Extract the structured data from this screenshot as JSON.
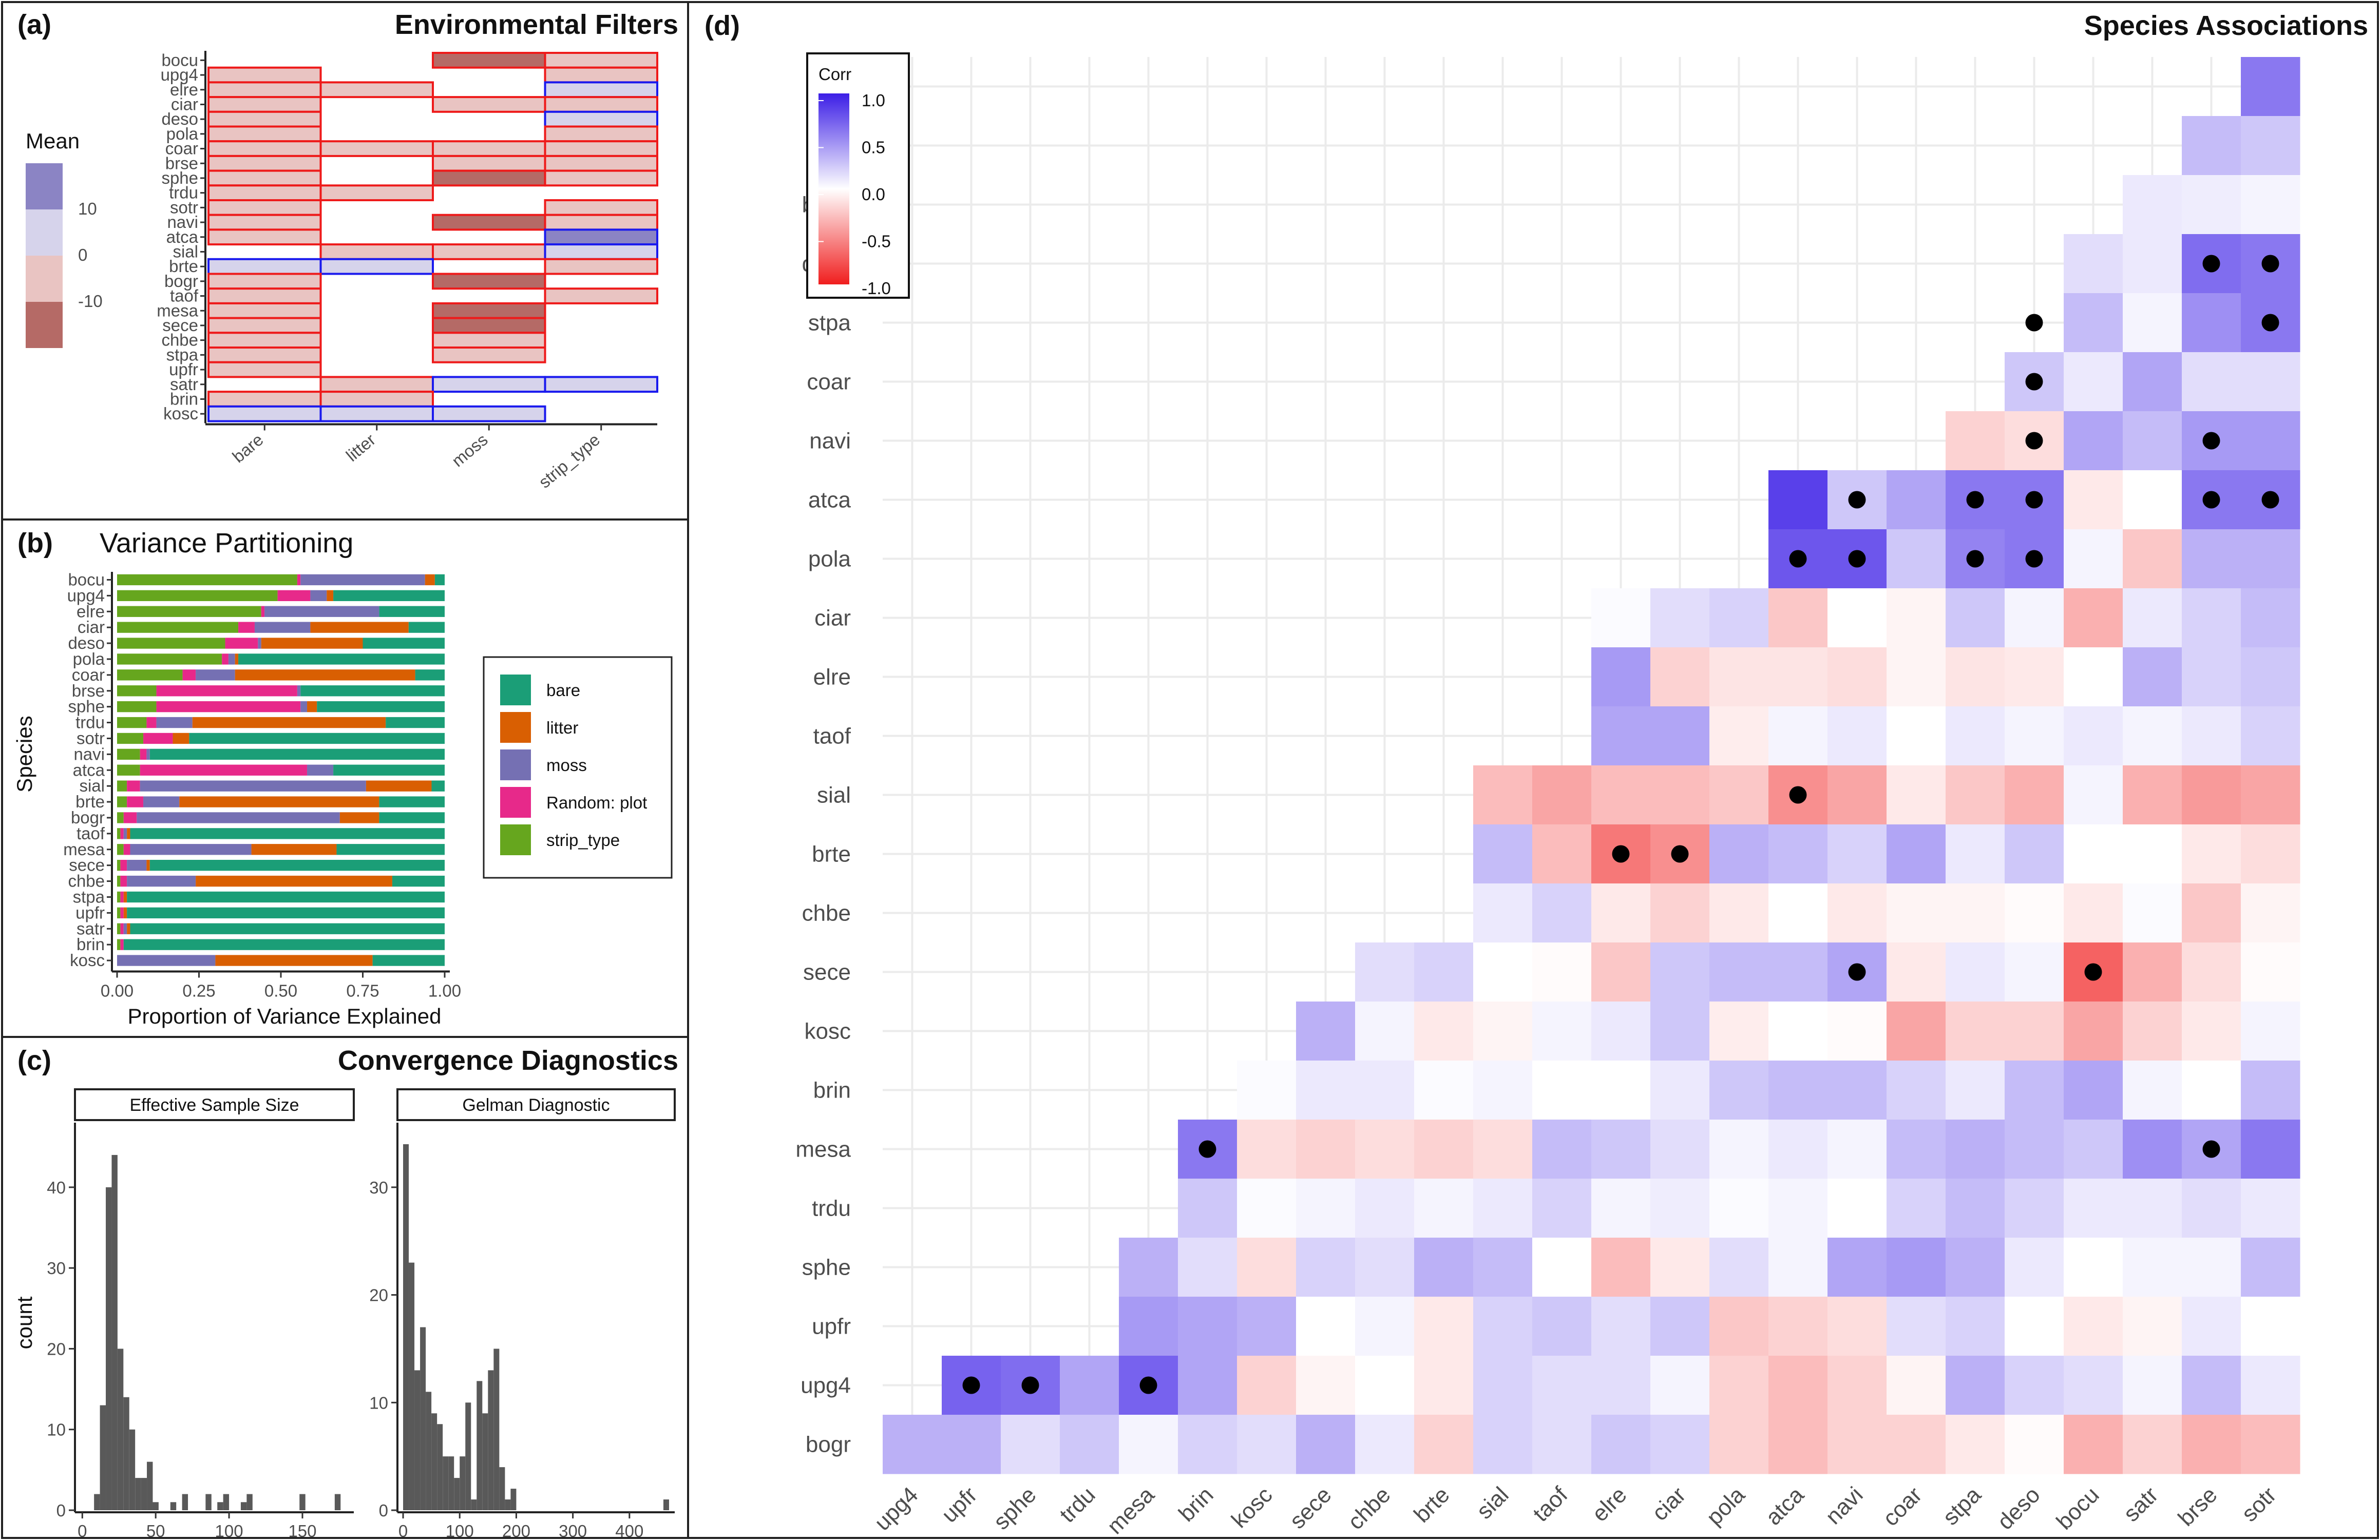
{
  "colors": {
    "bare": "#1b9e77",
    "litter": "#d95f02",
    "moss": "#7570b3",
    "random": "#e7298a",
    "strip": "#66a61e",
    "pos_strong": "#8b84c4",
    "pos_weak": "#d6d3eb",
    "neg_weak": "#e9c4c2",
    "neg_strong": "#b56a66",
    "hist": "#595959"
  },
  "panel_a": {
    "tag": "(a)",
    "title": "Environmental Filters",
    "legend_title": "Mean",
    "legend_labels": [
      "10",
      "0",
      "-10"
    ],
    "chart_data": {
      "type": "heatmap",
      "species": [
        "bocu",
        "upg4",
        "elre",
        "ciar",
        "deso",
        "pola",
        "coar",
        "brse",
        "sphe",
        "trdu",
        "sotr",
        "navi",
        "atca",
        "sial",
        "brte",
        "bogr",
        "taof",
        "mesa",
        "sece",
        "chbe",
        "stpa",
        "upfr",
        "satr",
        "brin",
        "kosc"
      ],
      "covariates": [
        "bare",
        "litter",
        "moss",
        "strip_type"
      ],
      "sign_matrix": [
        [
          0,
          0,
          -2,
          -1
        ],
        [
          -1,
          0,
          0,
          -1
        ],
        [
          -1,
          -1,
          0,
          1
        ],
        [
          -1,
          0,
          -1,
          -1
        ],
        [
          -1,
          0,
          0,
          1
        ],
        [
          -1,
          0,
          0,
          -1
        ],
        [
          -1,
          -1,
          -1,
          -1
        ],
        [
          -1,
          0,
          -1,
          -1
        ],
        [
          -1,
          0,
          -2,
          -1
        ],
        [
          -1,
          -1,
          0,
          0
        ],
        [
          -1,
          0,
          0,
          -1
        ],
        [
          -1,
          0,
          -2,
          -1
        ],
        [
          -1,
          0,
          0,
          2
        ],
        [
          0,
          -1,
          -1,
          1
        ],
        [
          1,
          1,
          0,
          -1
        ],
        [
          -1,
          0,
          -2,
          0
        ],
        [
          -1,
          0,
          0,
          -1
        ],
        [
          -1,
          0,
          -2,
          0
        ],
        [
          -1,
          0,
          -2,
          0
        ],
        [
          -1,
          0,
          -1,
          0
        ],
        [
          -1,
          0,
          -1,
          0
        ],
        [
          -1,
          0,
          0,
          0
        ],
        [
          0,
          -1,
          1,
          1
        ],
        [
          -1,
          -1,
          0,
          0
        ],
        [
          1,
          1,
          1,
          0
        ]
      ]
    }
  },
  "panel_b": {
    "tag": "(b)",
    "title": "Variance Partitioning",
    "xlabel": "Proportion of Variance Explained",
    "ylabel": "Species",
    "xticks": [
      "0.00",
      "0.25",
      "0.50",
      "0.75",
      "1.00"
    ],
    "legend": [
      "bare",
      "litter",
      "moss",
      "Random: plot",
      "strip_type"
    ],
    "chart_data": {
      "type": "bar",
      "orientation": "horizontal-stacked",
      "categories": [
        "bocu",
        "upg4",
        "elre",
        "ciar",
        "deso",
        "pola",
        "coar",
        "brse",
        "sphe",
        "trdu",
        "sotr",
        "navi",
        "atca",
        "sial",
        "brte",
        "bogr",
        "taof",
        "mesa",
        "sece",
        "chbe",
        "stpa",
        "upfr",
        "satr",
        "brin",
        "kosc"
      ],
      "series": [
        {
          "name": "strip_type",
          "values": [
            0.55,
            0.49,
            0.44,
            0.37,
            0.33,
            0.32,
            0.2,
            0.12,
            0.12,
            0.09,
            0.08,
            0.07,
            0.07,
            0.03,
            0.03,
            0.02,
            0.01,
            0.02,
            0.01,
            0.01,
            0.01,
            0.01,
            0.01,
            0.01,
            0.0
          ]
        },
        {
          "name": "Random: plot",
          "values": [
            0.01,
            0.1,
            0.01,
            0.05,
            0.1,
            0.02,
            0.04,
            0.43,
            0.44,
            0.03,
            0.09,
            0.02,
            0.51,
            0.04,
            0.05,
            0.04,
            0.01,
            0.02,
            0.02,
            0.02,
            0.01,
            0.01,
            0.01,
            0.01,
            0.0
          ]
        },
        {
          "name": "moss",
          "values": [
            0.38,
            0.05,
            0.35,
            0.17,
            0.01,
            0.02,
            0.12,
            0.01,
            0.02,
            0.11,
            0.0,
            0.01,
            0.08,
            0.69,
            0.11,
            0.62,
            0.01,
            0.37,
            0.06,
            0.21,
            0.0,
            0.0,
            0.01,
            0.0,
            0.3
          ]
        },
        {
          "name": "litter",
          "values": [
            0.03,
            0.02,
            0.0,
            0.3,
            0.31,
            0.01,
            0.55,
            0.0,
            0.03,
            0.59,
            0.05,
            0.0,
            0.0,
            0.2,
            0.61,
            0.12,
            0.01,
            0.26,
            0.01,
            0.6,
            0.01,
            0.01,
            0.01,
            0.0,
            0.48
          ]
        },
        {
          "name": "bare",
          "values": [
            0.03,
            0.34,
            0.2,
            0.11,
            0.25,
            0.63,
            0.09,
            0.44,
            0.39,
            0.18,
            0.78,
            0.9,
            0.34,
            0.04,
            0.2,
            0.2,
            0.96,
            0.33,
            0.9,
            0.16,
            0.97,
            0.97,
            0.96,
            0.98,
            0.22
          ]
        }
      ],
      "xlim": [
        0,
        1
      ]
    }
  },
  "panel_c": {
    "tag": "(c)",
    "title": "Convergence Diagnostics",
    "ylabel": "count",
    "chart_data": [
      {
        "type": "bar",
        "title": "Effective Sample Size",
        "bins": [
          8,
          12,
          16,
          20,
          24,
          28,
          32,
          36,
          40,
          44,
          48,
          52,
          56,
          60,
          64,
          68,
          80,
          84,
          88,
          92,
          96,
          100,
          104,
          108,
          112,
          116,
          120,
          124,
          128,
          132,
          136,
          140,
          144,
          148,
          152,
          156,
          160,
          164,
          168,
          172,
          176,
          180
        ],
        "counts": [
          2,
          13,
          40,
          44,
          20,
          14,
          10,
          4,
          4,
          6,
          1,
          0,
          0,
          1,
          0,
          2,
          0,
          2,
          0,
          1,
          2,
          0,
          0,
          1,
          2,
          0,
          0,
          0,
          0,
          0,
          0,
          0,
          0,
          2,
          0,
          0,
          0,
          0,
          0,
          2,
          0,
          0
        ],
        "bin_width": 4,
        "xlim": [
          -5,
          185
        ],
        "ylim": [
          0,
          48
        ],
        "xticks": [
          0,
          50,
          100,
          150
        ],
        "yticks": [
          0,
          10,
          20,
          30,
          40
        ]
      },
      {
        "type": "bar",
        "title": "Gelman Diagnostic",
        "bins": [
          0,
          10,
          20,
          30,
          40,
          50,
          60,
          70,
          80,
          90,
          100,
          110,
          120,
          130,
          140,
          150,
          160,
          170,
          180,
          190,
          200,
          460
        ],
        "counts": [
          34,
          23,
          13,
          17,
          11,
          9,
          8,
          5,
          5,
          3,
          5,
          10,
          1,
          12,
          9,
          13,
          15,
          4,
          1,
          2,
          0,
          1
        ],
        "bin_width": 10,
        "xlim": [
          -10,
          480
        ],
        "ylim": [
          0,
          36
        ],
        "xticks": [
          0,
          100,
          200,
          300,
          400
        ],
        "yticks": [
          0,
          10,
          20,
          30
        ]
      }
    ]
  },
  "panel_d": {
    "tag": "(d)",
    "title": "Species Associations",
    "legend_title": "Corr",
    "legend_labels": [
      "1.0",
      "0.5",
      "0.0",
      "-0.5",
      "-1.0"
    ],
    "chart_data": {
      "type": "heatmap",
      "x_labels": [
        "upg4",
        "upfr",
        "sphe",
        "trdu",
        "mesa",
        "brin",
        "kosc",
        "sece",
        "chbe",
        "brte",
        "sial",
        "taof",
        "elre",
        "ciar",
        "pola",
        "atca",
        "navi",
        "coar",
        "stpa",
        "deso",
        "bocu",
        "satr",
        "brse",
        "sotr"
      ],
      "y_labels": [
        "brse",
        "satr",
        "bocu",
        "deso",
        "stpa",
        "coar",
        "navi",
        "atca",
        "pola",
        "ciar",
        "elre",
        "taof",
        "sial",
        "brte",
        "chbe",
        "sece",
        "kosc",
        "brin",
        "mesa",
        "trdu",
        "sphe",
        "upfr",
        "upg4",
        "bogr"
      ],
      "clim": [
        -1,
        1
      ],
      "values": [
        [
          0.6
        ],
        [
          0.3,
          0.25
        ],
        [
          0.1,
          0.08,
          0.05
        ],
        [
          0.15,
          0.1,
          0.65,
          0.6
        ],
        [
          0.3,
          0.05,
          0.5,
          0.6
        ],
        [
          0.25,
          0.1,
          0.4,
          0.15,
          0.15
        ],
        [
          -0.2,
          -0.15,
          0.4,
          0.3,
          0.45,
          0.45
        ],
        [
          0.85,
          0.25,
          0.4,
          0.6,
          0.6,
          -0.1,
          0.0,
          0.6,
          0.6
        ],
        [
          0.75,
          0.75,
          0.25,
          0.55,
          0.6,
          0.05,
          -0.25,
          0.35,
          0.35
        ],
        [
          0.02,
          0.15,
          0.2,
          -0.25,
          0.0,
          -0.05,
          0.25,
          0.05,
          -0.35,
          0.1,
          0.2,
          0.3
        ],
        [
          0.45,
          -0.2,
          -0.12,
          -0.12,
          -0.15,
          -0.05,
          -0.12,
          -0.1,
          0.0,
          0.35,
          0.2,
          0.25
        ],
        [
          0.4,
          0.4,
          -0.08,
          0.05,
          0.1,
          0.0,
          0.1,
          0.05,
          0.1,
          0.05,
          0.1,
          0.2
        ],
        [
          -0.3,
          -0.4,
          -0.3,
          -0.3,
          -0.25,
          -0.5,
          -0.4,
          -0.1,
          -0.25,
          -0.35,
          0.05,
          -0.35,
          -0.45,
          -0.4
        ],
        [
          0.3,
          -0.3,
          -0.6,
          -0.5,
          0.35,
          0.3,
          0.2,
          0.4,
          0.1,
          0.25,
          0.0,
          0.0,
          -0.1,
          -0.15
        ],
        [
          0.1,
          0.2,
          -0.1,
          -0.2,
          -0.1,
          0.0,
          -0.1,
          -0.05,
          -0.05,
          -0.02,
          -0.1,
          0.02,
          -0.25,
          -0.05
        ],
        [
          0.15,
          0.2,
          0.0,
          -0.02,
          -0.25,
          0.25,
          0.3,
          0.3,
          0.4,
          -0.1,
          0.1,
          0.05,
          -0.7,
          -0.35,
          -0.15,
          -0.02
        ],
        [
          0.35,
          0.05,
          -0.1,
          -0.05,
          0.05,
          0.1,
          0.25,
          -0.08,
          0.0,
          -0.02,
          -0.4,
          -0.2,
          -0.2,
          -0.4,
          -0.2,
          -0.1,
          0.05
        ],
        [
          0.02,
          0.1,
          0.1,
          0.02,
          0.05,
          0.0,
          0.0,
          0.1,
          0.25,
          0.3,
          0.3,
          0.2,
          0.1,
          0.3,
          0.4,
          0.05,
          0.0,
          0.3
        ],
        [
          0.6,
          -0.15,
          -0.2,
          -0.15,
          -0.2,
          -0.15,
          0.3,
          0.25,
          0.15,
          0.05,
          0.1,
          0.05,
          0.3,
          0.35,
          0.3,
          0.25,
          0.5,
          0.4,
          0.6
        ],
        [
          0.25,
          0.02,
          0.05,
          0.1,
          0.05,
          0.1,
          0.2,
          0.05,
          0.08,
          0.02,
          0.05,
          0.0,
          0.2,
          0.3,
          0.2,
          0.1,
          0.1,
          0.15,
          0.1
        ],
        [
          0.35,
          0.15,
          -0.15,
          0.2,
          0.15,
          0.35,
          0.3,
          0.0,
          -0.3,
          -0.1,
          0.15,
          0.05,
          0.4,
          0.45,
          0.35,
          0.1,
          0.0,
          0.05,
          0.05,
          0.3
        ],
        [
          0.45,
          0.4,
          0.35,
          0.0,
          0.05,
          -0.1,
          0.2,
          0.25,
          0.15,
          0.25,
          -0.25,
          -0.2,
          -0.15,
          0.15,
          0.2,
          0.0,
          -0.1,
          -0.05,
          0.1,
          0.0
        ],
        [
          0.7,
          0.65,
          0.4,
          0.7,
          0.4,
          -0.2,
          -0.05,
          0.0,
          -0.1,
          0.2,
          0.15,
          0.15,
          0.05,
          -0.2,
          -0.3,
          -0.2,
          -0.05,
          0.35,
          0.2,
          0.15,
          0.05,
          0.3,
          0.1
        ],
        [
          0.35,
          0.35,
          0.15,
          0.25,
          0.05,
          0.2,
          0.15,
          0.35,
          0.1,
          -0.2,
          0.2,
          0.15,
          0.25,
          0.2,
          -0.2,
          -0.3,
          -0.2,
          -0.2,
          -0.1,
          -0.02,
          -0.35,
          -0.2,
          -0.35,
          -0.3
        ]
      ],
      "significant": [
        [
          3,
          23
        ],
        [
          3,
          24
        ],
        [
          4,
          20
        ],
        [
          4,
          24
        ],
        [
          5,
          20
        ],
        [
          6,
          20
        ],
        [
          6,
          23
        ],
        [
          7,
          17
        ],
        [
          7,
          19
        ],
        [
          7,
          20
        ],
        [
          7,
          23
        ],
        [
          7,
          24
        ],
        [
          8,
          16
        ],
        [
          8,
          17
        ],
        [
          8,
          19
        ],
        [
          8,
          20
        ],
        [
          12,
          16
        ],
        [
          13,
          13
        ],
        [
          13,
          14
        ],
        [
          15,
          17
        ],
        [
          15,
          21
        ],
        [
          18,
          6
        ],
        [
          18,
          23
        ],
        [
          22,
          2
        ],
        [
          22,
          3
        ],
        [
          22,
          5
        ]
      ]
    }
  }
}
